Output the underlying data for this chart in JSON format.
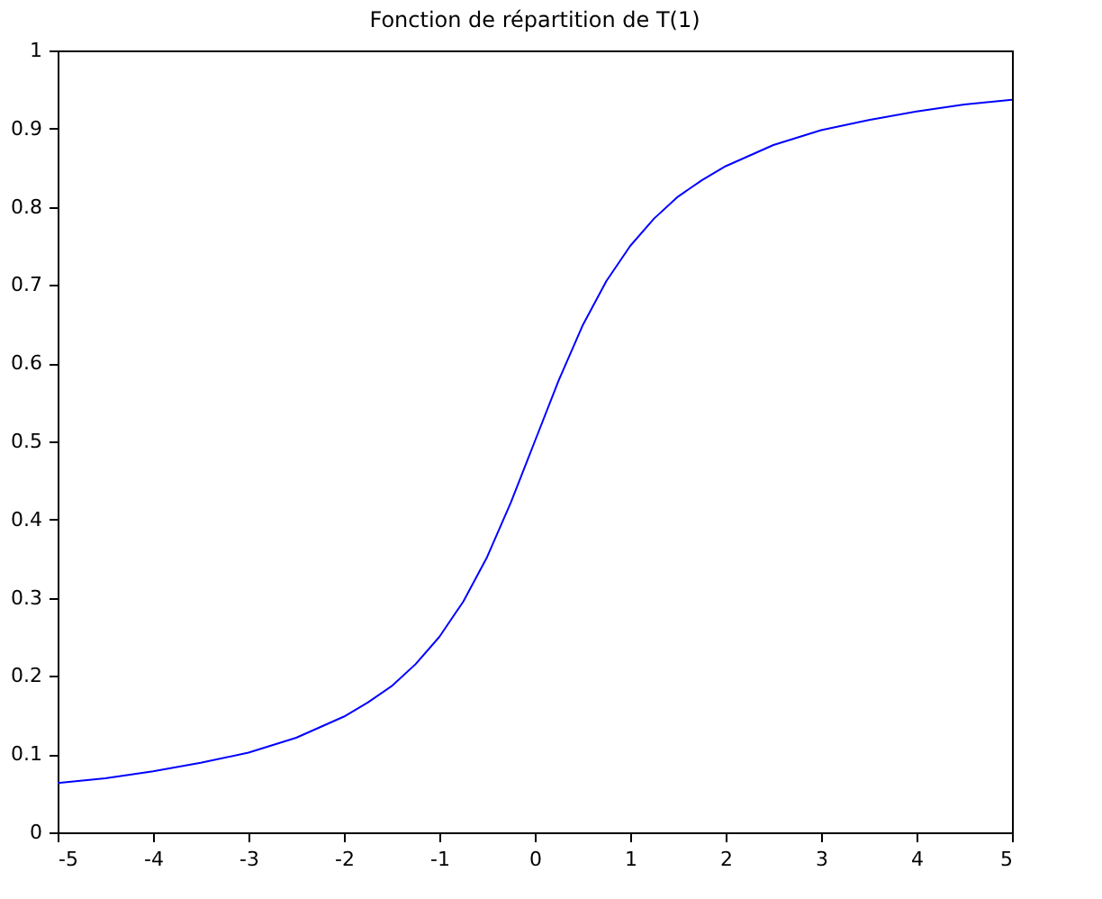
{
  "chart_data": {
    "type": "line",
    "title": "Fonction de répartition de T(1)",
    "x": [
      -5,
      -4.5,
      -4,
      -3.5,
      -3,
      -2.5,
      -2,
      -1.75,
      -1.5,
      -1.25,
      -1,
      -0.75,
      -0.5,
      -0.25,
      0,
      0.25,
      0.5,
      0.75,
      1,
      1.25,
      1.5,
      1.75,
      2,
      2.5,
      3,
      3.5,
      4,
      4.5,
      5
    ],
    "series": [
      {
        "color": "#0000ff",
        "values": [
          0.063,
          0.069,
          0.078,
          0.089,
          0.102,
          0.121,
          0.148,
          0.166,
          0.187,
          0.215,
          0.25,
          0.295,
          0.352,
          0.422,
          0.5,
          0.578,
          0.648,
          0.705,
          0.75,
          0.785,
          0.813,
          0.834,
          0.852,
          0.879,
          0.898,
          0.911,
          0.922,
          0.931,
          0.937
        ]
      }
    ],
    "xlim": [
      -5,
      5
    ],
    "xticks": [
      -5,
      -4,
      -3,
      -2,
      -1,
      0,
      1,
      2,
      3,
      4,
      5
    ],
    "ylim": [
      0,
      1
    ],
    "yticks": [
      0,
      0.1,
      0.2,
      0.3,
      0.4,
      0.5,
      0.6,
      0.7,
      0.8,
      0.9,
      1
    ],
    "grid": false,
    "marker": "none",
    "line_style": "solid"
  }
}
